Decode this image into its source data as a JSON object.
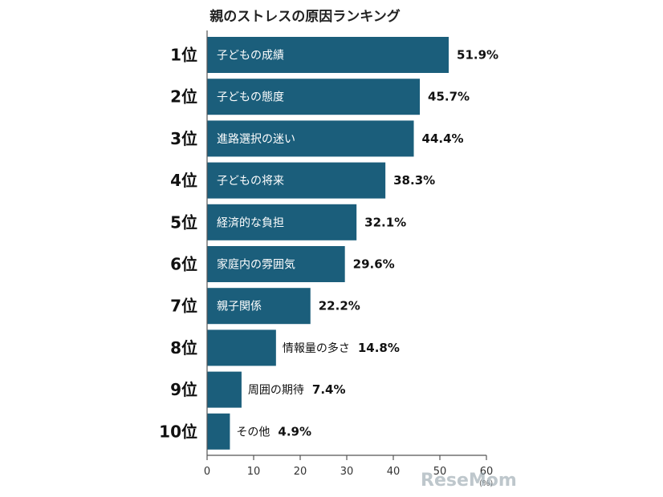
{
  "chart_data": {
    "type": "bar",
    "orientation": "horizontal",
    "title": "親のストレスの原因ランキング",
    "ranks": [
      "1位",
      "2位",
      "3位",
      "4位",
      "5位",
      "6位",
      "7位",
      "8位",
      "9位",
      "10位"
    ],
    "categories": [
      "子どもの成績",
      "子どもの態度",
      "進路選択の迷い",
      "子どもの将来",
      "経済的な負担",
      "家庭内の雰囲気",
      "親子関係",
      "情報量の多さ",
      "周囲の期待",
      "その他"
    ],
    "values": [
      51.9,
      45.7,
      44.4,
      38.3,
      32.1,
      29.6,
      22.2,
      14.8,
      7.4,
      4.9
    ],
    "value_labels": [
      "51.9%",
      "45.7%",
      "44.4%",
      "38.3%",
      "32.1%",
      "29.6%",
      "22.2%",
      "14.8%",
      "7.4%",
      "4.9%"
    ],
    "xlim": [
      0,
      60
    ],
    "xticks": [
      "0",
      "10",
      "20",
      "30",
      "40",
      "50",
      "60"
    ],
    "unit": "(%)",
    "bar_color": "#1b5e7b",
    "watermark": "ReseMom"
  }
}
